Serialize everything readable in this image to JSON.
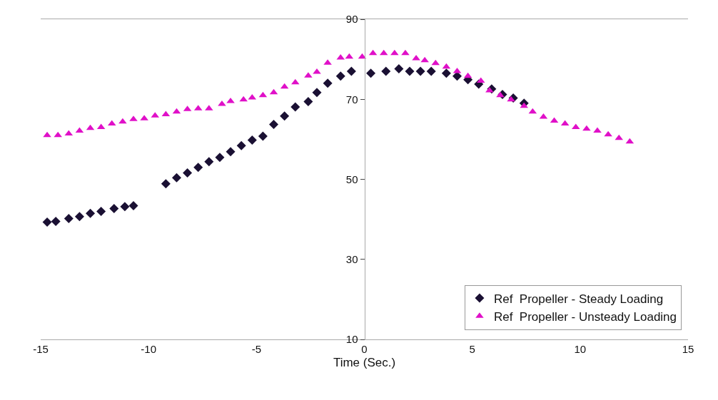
{
  "chart_data": {
    "type": "scatter",
    "xlabel": "Time (Sec.)",
    "xlim": [
      -15,
      15
    ],
    "xticks": [
      -15,
      -10,
      -5,
      0,
      5,
      10,
      15
    ],
    "ylim": [
      10,
      90
    ],
    "yticks": [
      10,
      30,
      50,
      70,
      90
    ],
    "grid": false,
    "legend": "bottom right",
    "series": [
      {
        "name": "Ref  Propeller - Steady Loading",
        "color": "#1a1033",
        "marker": "diamond",
        "x": [
          -14.7,
          -14.3,
          -13.7,
          -13.2,
          -12.7,
          -12.2,
          -11.6,
          -11.1,
          -10.7,
          -9.2,
          -8.7,
          -8.2,
          -7.7,
          -7.2,
          -6.7,
          -6.2,
          -5.7,
          -5.2,
          -4.7,
          -4.2,
          -3.7,
          -3.2,
          -2.6,
          -2.2,
          -1.7,
          -1.1,
          -0.6,
          0.3,
          1.0,
          1.6,
          2.1,
          2.6,
          3.1,
          3.8,
          4.3,
          4.8,
          5.3,
          5.9,
          6.4,
          6.9,
          7.4
        ],
        "values": [
          39.3,
          39.5,
          40.2,
          40.7,
          41.5,
          42.0,
          42.7,
          43.2,
          43.4,
          48.9,
          50.4,
          51.6,
          53.0,
          54.4,
          55.5,
          56.9,
          58.4,
          59.8,
          60.8,
          63.7,
          65.8,
          68.1,
          69.4,
          71.7,
          74.0,
          75.8,
          77.0,
          76.5,
          77.0,
          77.6,
          77.0,
          77.0,
          77.0,
          76.5,
          75.8,
          74.9,
          73.8,
          72.6,
          71.2,
          70.3,
          69.0
        ]
      },
      {
        "name": "Ref  Propeller - Unsteady Loading",
        "color": "#e010c8",
        "marker": "triangle",
        "x": [
          -14.7,
          -14.2,
          -13.7,
          -13.2,
          -12.7,
          -12.2,
          -11.7,
          -11.2,
          -10.7,
          -10.2,
          -9.7,
          -9.2,
          -8.7,
          -8.2,
          -7.7,
          -7.2,
          -6.6,
          -6.2,
          -5.6,
          -5.2,
          -4.7,
          -4.2,
          -3.7,
          -3.2,
          -2.6,
          -2.2,
          -1.7,
          -1.1,
          -0.7,
          -0.1,
          0.4,
          0.9,
          1.4,
          1.9,
          2.4,
          2.8,
          3.3,
          3.8,
          4.3,
          4.8,
          5.4,
          5.8,
          6.3,
          6.8,
          7.4,
          7.8,
          8.3,
          8.8,
          9.3,
          9.8,
          10.3,
          10.8,
          11.3,
          11.8,
          12.3
        ],
        "values": [
          61.0,
          61.0,
          61.4,
          62.1,
          62.8,
          63.0,
          63.9,
          64.4,
          65.0,
          65.2,
          65.9,
          66.2,
          66.9,
          67.5,
          67.7,
          67.7,
          68.8,
          69.5,
          69.9,
          70.4,
          71.0,
          71.7,
          73.1,
          74.2,
          75.9,
          76.8,
          79.1,
          80.4,
          80.6,
          80.6,
          81.5,
          81.5,
          81.5,
          81.5,
          80.2,
          79.7,
          79.0,
          78.1,
          77.0,
          75.8,
          74.6,
          72.2,
          71.0,
          69.9,
          68.3,
          66.9,
          65.6,
          64.6,
          63.9,
          63.0,
          62.6,
          62.1,
          61.2,
          60.3,
          59.4
        ]
      }
    ]
  }
}
